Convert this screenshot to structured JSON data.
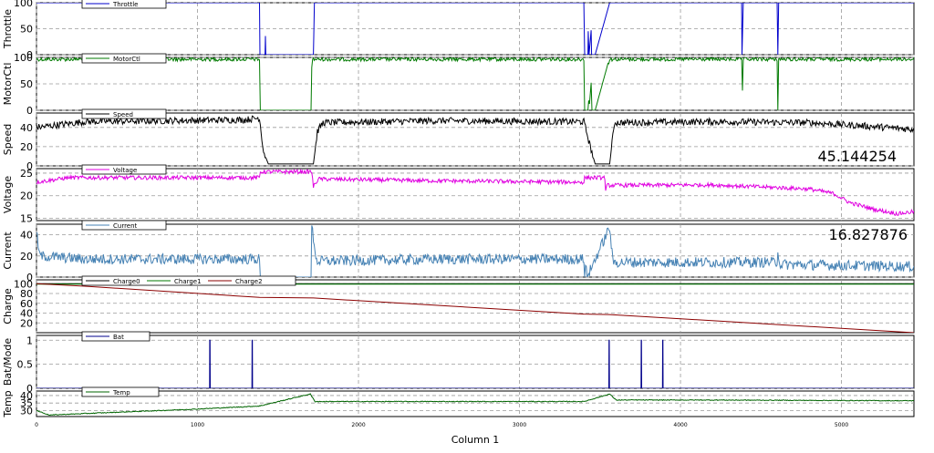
{
  "chart_data": {
    "type": "line",
    "xlabel": "Column 1",
    "xlim": [
      0,
      5450
    ],
    "x_ticks": [
      "0",
      "1000",
      "2000",
      "3000",
      "4000",
      "5000"
    ],
    "x_tick_values": [
      0,
      1000,
      2000,
      3000,
      4000,
      5000
    ],
    "grid": true,
    "legend_position": "top-left",
    "panels": [
      {
        "ylabel": "Throttle",
        "ylim": [
          0,
          100
        ],
        "y_ticks": [
          "0",
          "50",
          "100"
        ],
        "y_tick_values": [
          0,
          50,
          100
        ],
        "series": [
          {
            "name": "Throttle",
            "color": "#0000cc",
            "style": "throttle",
            "breakpoints": [
              [
                0,
                100
              ],
              [
                1385,
                100
              ],
              [
                1388,
                0
              ],
              [
                1420,
                0
              ],
              [
                1422,
                36
              ],
              [
                1424,
                0
              ],
              [
                1720,
                0
              ],
              [
                1722,
                35
              ],
              [
                1726,
                100
              ],
              [
                3400,
                100
              ],
              [
                3405,
                0
              ],
              [
                3425,
                0
              ],
              [
                3427,
                45
              ],
              [
                3432,
                0
              ],
              [
                3445,
                47
              ],
              [
                3448,
                0
              ],
              [
                3470,
                0
              ],
              [
                3560,
                100
              ],
              [
                4380,
                100
              ],
              [
                4382,
                0
              ],
              [
                4390,
                100
              ],
              [
                4600,
                100
              ],
              [
                4605,
                0
              ],
              [
                4610,
                100
              ],
              [
                5450,
                100
              ]
            ]
          }
        ]
      },
      {
        "ylabel": "MotorCtl",
        "ylim": [
          0,
          100
        ],
        "y_ticks": [
          "0",
          "50",
          "100"
        ],
        "y_tick_values": [
          0,
          50,
          100
        ],
        "series": [
          {
            "name": "MotorCtl",
            "color": "#007a00",
            "style": "motor",
            "breakpoints": [
              [
                0,
                100
              ],
              [
                1385,
                100
              ],
              [
                1388,
                0
              ],
              [
                1420,
                0
              ],
              [
                1422,
                38
              ],
              [
                1424,
                0
              ],
              [
                1705,
                0
              ],
              [
                1708,
                62
              ],
              [
                1712,
                100
              ],
              [
                3400,
                100
              ],
              [
                3405,
                0
              ],
              [
                3425,
                0
              ],
              [
                3427,
                46
              ],
              [
                3432,
                0
              ],
              [
                3445,
                52
              ],
              [
                3448,
                0
              ],
              [
                3470,
                0
              ],
              [
                3560,
                100
              ],
              [
                4380,
                100
              ],
              [
                4382,
                0
              ],
              [
                4390,
                100
              ],
              [
                4600,
                100
              ],
              [
                4605,
                0
              ],
              [
                4610,
                100
              ],
              [
                5450,
                100
              ]
            ]
          }
        ]
      },
      {
        "ylabel": "Speed",
        "ylim": [
          0,
          55
        ],
        "y_ticks": [
          "0",
          "20",
          "40"
        ],
        "y_tick_values": [
          0,
          20,
          40
        ],
        "value_label": "45.144254",
        "series": [
          {
            "name": "Speed",
            "color": "#000000",
            "style": "speed",
            "breakpoints": [
              [
                0,
                40
              ],
              [
                300,
                46
              ],
              [
                800,
                47
              ],
              [
                1300,
                48
              ],
              [
                1385,
                50
              ],
              [
                1410,
                15
              ],
              [
                1440,
                2
              ],
              [
                1720,
                2
              ],
              [
                1745,
                36
              ],
              [
                1780,
                45
              ],
              [
                2500,
                47
              ],
              [
                3300,
                46
              ],
              [
                3400,
                46
              ],
              [
                3440,
                20
              ],
              [
                3470,
                2
              ],
              [
                3560,
                2
              ],
              [
                3590,
                45
              ],
              [
                4200,
                46
              ],
              [
                4800,
                45
              ],
              [
                5100,
                42
              ],
              [
                5450,
                38
              ]
            ]
          }
        ]
      },
      {
        "ylabel": "Voltage",
        "ylim": [
          14.5,
          26
        ],
        "y_ticks": [
          "15",
          "20",
          "25"
        ],
        "y_tick_values": [
          15,
          20,
          25
        ],
        "series": [
          {
            "name": "Voltage",
            "color": "#e000e0",
            "style": "voltage",
            "breakpoints": [
              [
                0,
                23
              ],
              [
                200,
                24
              ],
              [
                800,
                24
              ],
              [
                1385,
                24
              ],
              [
                1390,
                25.3
              ],
              [
                1710,
                25.3
              ],
              [
                1720,
                22
              ],
              [
                1750,
                23.7
              ],
              [
                2500,
                23.3
              ],
              [
                3400,
                23
              ],
              [
                3405,
                24
              ],
              [
                3530,
                24
              ],
              [
                3535,
                21
              ],
              [
                3545,
                22.3
              ],
              [
                4200,
                22.4
              ],
              [
                4800,
                21.5
              ],
              [
                4950,
                20.5
              ],
              [
                5050,
                18.5
              ],
              [
                5200,
                17
              ],
              [
                5350,
                16
              ],
              [
                5450,
                16.5
              ]
            ]
          }
        ]
      },
      {
        "ylabel": "Current",
        "ylim": [
          0,
          50
        ],
        "y_ticks": [
          "0",
          "20",
          "40"
        ],
        "y_tick_values": [
          0,
          20,
          40
        ],
        "value_label": "16.827876",
        "series": [
          {
            "name": "Current",
            "color": "#4682b4",
            "style": "current",
            "breakpoints": [
              [
                0,
                42
              ],
              [
                20,
                20
              ],
              [
                300,
                17
              ],
              [
                1000,
                17
              ],
              [
                1385,
                17
              ],
              [
                1388,
                0
              ],
              [
                1705,
                0
              ],
              [
                1710,
                48
              ],
              [
                1740,
                15
              ],
              [
                2500,
                17
              ],
              [
                3400,
                17
              ],
              [
                3405,
                0
              ],
              [
                3410,
                14
              ],
              [
                3420,
                0
              ],
              [
                3560,
                47
              ],
              [
                3580,
                14
              ],
              [
                4600,
                14
              ],
              [
                4605,
                28
              ],
              [
                4615,
                12
              ],
              [
                5450,
                10
              ]
            ]
          }
        ]
      },
      {
        "ylabel": "Charge",
        "ylim": [
          0,
          108
        ],
        "y_ticks": [
          "20",
          "40",
          "60",
          "80",
          "100"
        ],
        "y_tick_values": [
          20,
          40,
          60,
          80,
          100
        ],
        "series": [
          {
            "name": "Charge0",
            "color": "#000000",
            "style": "flat",
            "breakpoints": [
              [
                0,
                100
              ],
              [
                5450,
                100
              ]
            ]
          },
          {
            "name": "Charge1",
            "color": "#007a00",
            "style": "flat",
            "breakpoints": [
              [
                0,
                99
              ],
              [
                5450,
                99
              ]
            ]
          },
          {
            "name": "Charge2",
            "color": "#8b0000",
            "style": "smooth",
            "breakpoints": [
              [
                0,
                100
              ],
              [
                300,
                95
              ],
              [
                1385,
                72
              ],
              [
                1720,
                71
              ],
              [
                3400,
                38
              ],
              [
                3560,
                37
              ],
              [
                5450,
                0
              ]
            ]
          }
        ]
      },
      {
        "ylabel": "Bat/Mode",
        "ylim": [
          0,
          1.1
        ],
        "y_ticks": [
          "0",
          "0.5",
          "1"
        ],
        "y_tick_values": [
          0,
          0.5,
          1
        ],
        "series": [
          {
            "name": "Bat",
            "color": "#00008b",
            "style": "step",
            "breakpoints": [
              [
                0,
                0
              ],
              [
                1075,
                0
              ],
              [
                1076,
                1
              ],
              [
                1078,
                1
              ],
              [
                1079,
                0
              ],
              [
                1338,
                0
              ],
              [
                1339,
                1
              ],
              [
                1341,
                1
              ],
              [
                1342,
                0
              ],
              [
                3555,
                0
              ],
              [
                3556,
                1
              ],
              [
                3558,
                1
              ],
              [
                3559,
                0
              ],
              [
                3755,
                0
              ],
              [
                3756,
                1
              ],
              [
                3758,
                1
              ],
              [
                3759,
                0
              ],
              [
                3888,
                0
              ],
              [
                3889,
                1
              ],
              [
                3891,
                1
              ],
              [
                3892,
                0
              ],
              [
                5450,
                0
              ]
            ]
          }
        ]
      },
      {
        "ylabel": "Temp",
        "ylim": [
          26,
          43
        ],
        "y_ticks": [
          "30",
          "35",
          "40"
        ],
        "y_tick_values": [
          30,
          35,
          40
        ],
        "series": [
          {
            "name": "Temp",
            "color": "#006400",
            "style": "temp",
            "breakpoints": [
              [
                0,
                30
              ],
              [
                80,
                27
              ],
              [
                300,
                28
              ],
              [
                1000,
                31
              ],
              [
                1385,
                33
              ],
              [
                1700,
                41
              ],
              [
                1730,
                36
              ],
              [
                2500,
                36
              ],
              [
                3400,
                36
              ],
              [
                3560,
                41
              ],
              [
                3600,
                37
              ],
              [
                4200,
                37
              ],
              [
                5450,
                36.5
              ]
            ]
          }
        ]
      }
    ]
  }
}
